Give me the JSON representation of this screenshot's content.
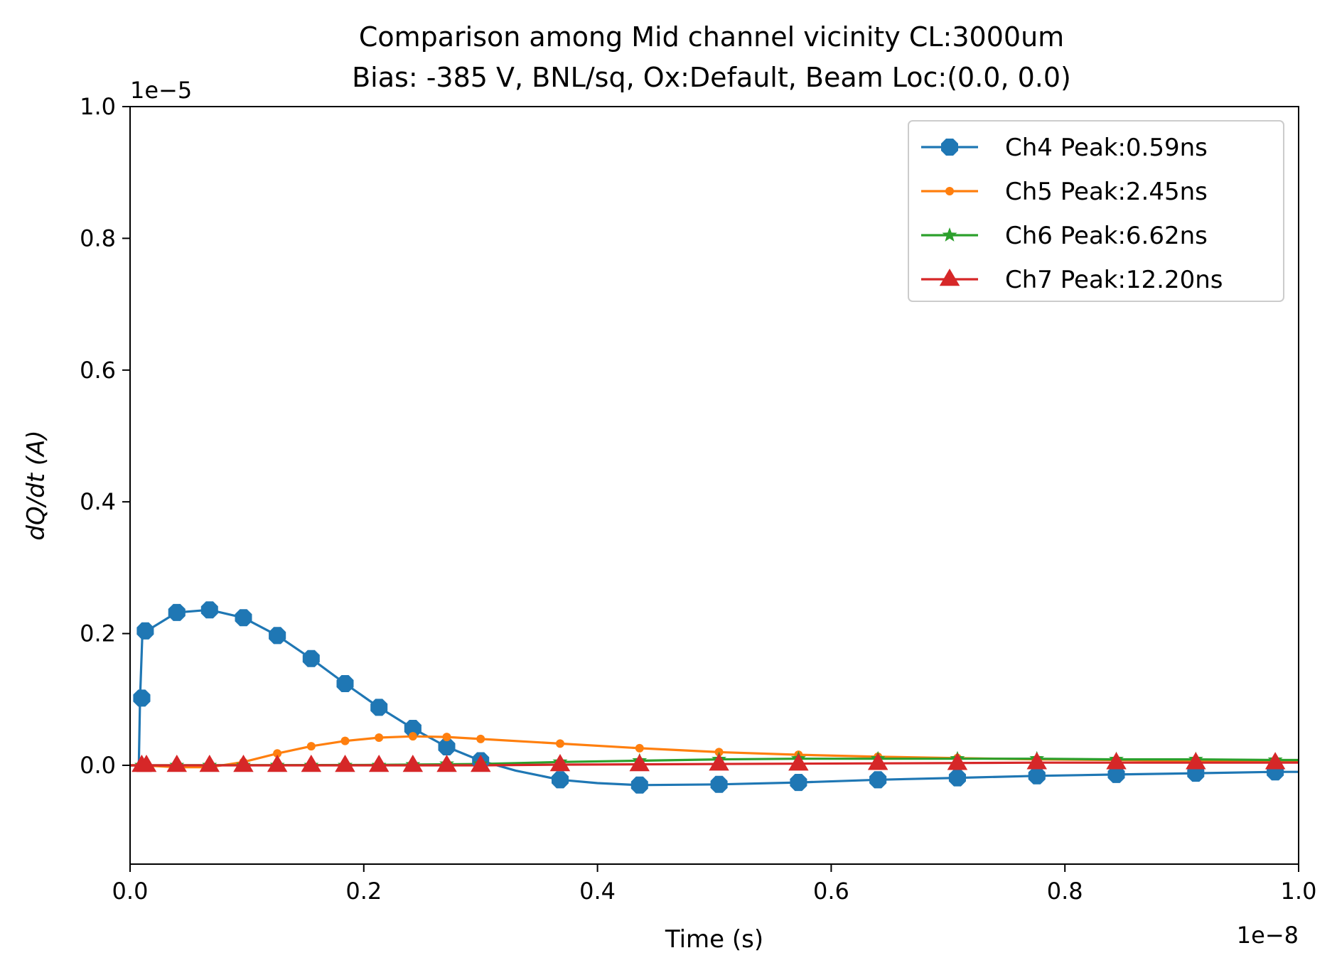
{
  "chart_data": {
    "type": "line",
    "title": "Comparison among Mid channel vicinity CL:3000um",
    "subtitle": "Bias: -385 V, BNL/sq, Ox:Default, Beam Loc:(0.0, 0.0)",
    "xlabel": "Time (s)",
    "ylabel": "dQ/dt (A)",
    "x_offset_label": "1e−8",
    "y_offset_label": "1e−5",
    "xlim": [
      0.0,
      1.0
    ],
    "ylim": [
      -0.15,
      1.0
    ],
    "xticks": [
      0.0,
      0.2,
      0.4,
      0.6,
      0.8,
      1.0
    ],
    "xtick_labels": [
      "0.0",
      "0.2",
      "0.4",
      "0.6",
      "0.8",
      "1.0"
    ],
    "yticks": [
      0.0,
      0.2,
      0.4,
      0.6,
      0.8,
      1.0
    ],
    "ytick_labels": [
      "0.0",
      "0.2",
      "0.4",
      "0.6",
      "0.8",
      "1.0"
    ],
    "legend_position": "top-right",
    "series": [
      {
        "name": "Ch4 Peak:0.59ns",
        "color": "#1f77b4",
        "marker": "octagon",
        "line": [
          [
            0,
            0
          ],
          [
            0.0075,
            0
          ],
          [
            0.0085,
            0.1
          ],
          [
            0.0105,
            0.2
          ],
          [
            0.04,
            0.232
          ],
          [
            0.068,
            0.236
          ],
          [
            0.097,
            0.224
          ],
          [
            0.126,
            0.197
          ],
          [
            0.155,
            0.162
          ],
          [
            0.184,
            0.124
          ],
          [
            0.213,
            0.088
          ],
          [
            0.242,
            0.056
          ],
          [
            0.271,
            0.028
          ],
          [
            0.3,
            0.007
          ],
          [
            0.33,
            -0.008
          ],
          [
            0.368,
            -0.022
          ],
          [
            0.4,
            -0.027
          ],
          [
            0.436,
            -0.03
          ],
          [
            0.504,
            -0.029
          ],
          [
            0.572,
            -0.026
          ],
          [
            0.64,
            -0.022
          ],
          [
            0.708,
            -0.019
          ],
          [
            0.776,
            -0.016
          ],
          [
            0.844,
            -0.014
          ],
          [
            0.912,
            -0.012
          ],
          [
            0.98,
            -0.01
          ],
          [
            1.0,
            -0.01
          ]
        ],
        "markers": [
          [
            0.01,
            0.102
          ],
          [
            0.013,
            0.204
          ],
          [
            0.04,
            0.232
          ],
          [
            0.068,
            0.236
          ],
          [
            0.097,
            0.224
          ],
          [
            0.126,
            0.197
          ],
          [
            0.155,
            0.162
          ],
          [
            0.184,
            0.124
          ],
          [
            0.213,
            0.088
          ],
          [
            0.242,
            0.056
          ],
          [
            0.271,
            0.028
          ],
          [
            0.3,
            0.007
          ],
          [
            0.368,
            -0.022
          ],
          [
            0.436,
            -0.03
          ],
          [
            0.504,
            -0.029
          ],
          [
            0.572,
            -0.026
          ],
          [
            0.64,
            -0.022
          ],
          [
            0.708,
            -0.019
          ],
          [
            0.776,
            -0.016
          ],
          [
            0.844,
            -0.014
          ],
          [
            0.912,
            -0.012
          ],
          [
            0.98,
            -0.01
          ]
        ]
      },
      {
        "name": "Ch5 Peak:2.45ns",
        "color": "#ff7f0e",
        "marker": "dot",
        "line": [
          [
            0,
            0
          ],
          [
            0.01,
            0
          ],
          [
            0.04,
            -0.003
          ],
          [
            0.068,
            -0.003
          ],
          [
            0.097,
            0.005
          ],
          [
            0.126,
            0.018
          ],
          [
            0.155,
            0.029
          ],
          [
            0.184,
            0.037
          ],
          [
            0.213,
            0.042
          ],
          [
            0.242,
            0.044
          ],
          [
            0.271,
            0.043
          ],
          [
            0.3,
            0.04
          ],
          [
            0.368,
            0.033
          ],
          [
            0.436,
            0.026
          ],
          [
            0.504,
            0.02
          ],
          [
            0.572,
            0.016
          ],
          [
            0.64,
            0.013
          ],
          [
            0.708,
            0.011
          ],
          [
            0.776,
            0.009
          ],
          [
            0.844,
            0.008
          ],
          [
            0.912,
            0.007
          ],
          [
            0.98,
            0.006
          ],
          [
            1.0,
            0.006
          ]
        ],
        "markers": [
          [
            0.01,
            0
          ],
          [
            0.04,
            -0.003
          ],
          [
            0.068,
            -0.003
          ],
          [
            0.097,
            0.005
          ],
          [
            0.126,
            0.018
          ],
          [
            0.155,
            0.029
          ],
          [
            0.184,
            0.037
          ],
          [
            0.213,
            0.042
          ],
          [
            0.242,
            0.044
          ],
          [
            0.271,
            0.043
          ],
          [
            0.3,
            0.04
          ],
          [
            0.368,
            0.033
          ],
          [
            0.436,
            0.026
          ],
          [
            0.504,
            0.02
          ],
          [
            0.572,
            0.016
          ],
          [
            0.64,
            0.013
          ],
          [
            0.708,
            0.011
          ],
          [
            0.776,
            0.009
          ],
          [
            0.844,
            0.008
          ],
          [
            0.912,
            0.007
          ],
          [
            0.98,
            0.006
          ]
        ]
      },
      {
        "name": "Ch6 Peak:6.62ns",
        "color": "#2ca02c",
        "marker": "star",
        "line": [
          [
            0,
            0
          ],
          [
            0.2,
            0.0005
          ],
          [
            0.3,
            0.002
          ],
          [
            0.368,
            0.005
          ],
          [
            0.436,
            0.007
          ],
          [
            0.504,
            0.009
          ],
          [
            0.572,
            0.01
          ],
          [
            0.64,
            0.01
          ],
          [
            0.708,
            0.01
          ],
          [
            0.776,
            0.01
          ],
          [
            0.844,
            0.009
          ],
          [
            0.912,
            0.009
          ],
          [
            0.98,
            0.008
          ],
          [
            1.0,
            0.008
          ]
        ],
        "markers": [
          [
            0.01,
            0
          ],
          [
            0.04,
            0
          ],
          [
            0.068,
            0
          ],
          [
            0.097,
            0
          ],
          [
            0.126,
            0
          ],
          [
            0.155,
            0
          ],
          [
            0.184,
            0
          ],
          [
            0.213,
            0
          ],
          [
            0.242,
            0.001
          ],
          [
            0.271,
            0.002
          ],
          [
            0.3,
            0.002
          ],
          [
            0.368,
            0.005
          ],
          [
            0.436,
            0.007
          ],
          [
            0.504,
            0.009
          ],
          [
            0.572,
            0.01
          ],
          [
            0.64,
            0.01
          ],
          [
            0.708,
            0.01
          ],
          [
            0.776,
            0.01
          ],
          [
            0.844,
            0.009
          ],
          [
            0.912,
            0.009
          ],
          [
            0.98,
            0.008
          ]
        ]
      },
      {
        "name": "Ch7 Peak:12.20ns",
        "color": "#d62728",
        "marker": "triangle",
        "line": [
          [
            0,
            0
          ],
          [
            0.3,
            0
          ],
          [
            0.368,
            0.001
          ],
          [
            0.504,
            0.002
          ],
          [
            0.64,
            0.003
          ],
          [
            0.776,
            0.004
          ],
          [
            0.912,
            0.004
          ],
          [
            1.0,
            0.004
          ]
        ],
        "markers": [
          [
            0.01,
            0
          ],
          [
            0.014,
            0
          ],
          [
            0.04,
            0
          ],
          [
            0.068,
            0
          ],
          [
            0.097,
            0
          ],
          [
            0.126,
            0
          ],
          [
            0.155,
            0
          ],
          [
            0.184,
            0
          ],
          [
            0.213,
            0
          ],
          [
            0.242,
            0
          ],
          [
            0.271,
            0
          ],
          [
            0.3,
            0
          ],
          [
            0.368,
            0.001
          ],
          [
            0.436,
            0.001
          ],
          [
            0.504,
            0.002
          ],
          [
            0.572,
            0.002
          ],
          [
            0.64,
            0.003
          ],
          [
            0.708,
            0.003
          ],
          [
            0.776,
            0.004
          ],
          [
            0.844,
            0.004
          ],
          [
            0.912,
            0.004
          ],
          [
            0.98,
            0.004
          ]
        ]
      }
    ]
  }
}
